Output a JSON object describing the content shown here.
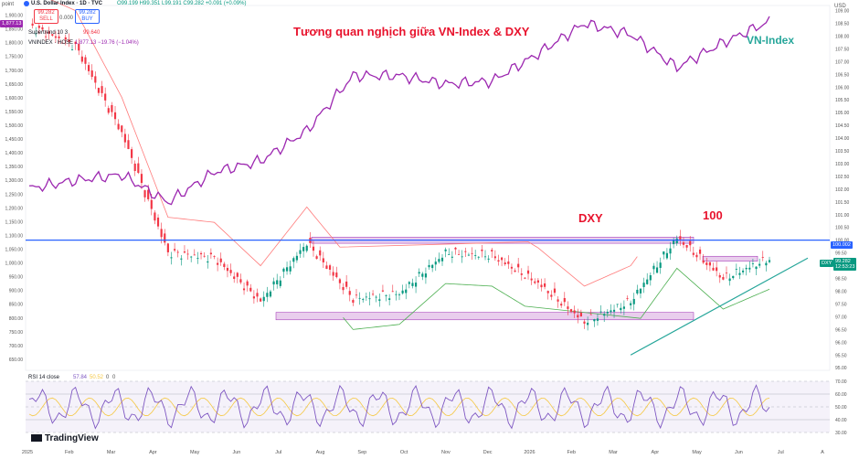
{
  "header": {
    "pane_label": "point",
    "symbol_line": "U.S. Dollar Index · 1D · TVC",
    "ohlc": "O99.199 H99.351 L99.191 C99.282 +0.091 (+0.09%)",
    "sell_price": "99.282",
    "sell_label": "SELL",
    "spread": "0.000",
    "buy_price": "99.282",
    "buy_label": "BUY",
    "supertrend": "Supertrend 10 3",
    "supertrend_value": "99.640",
    "vnindex_line": "VNINDEX · HOSE",
    "vnindex_value": "1,877.13 −19.76 (−1.04%)",
    "vnindex_badge": "1,877.13"
  },
  "annotations": {
    "title": "Tương quan nghịch giữa VN-Index  & DXY",
    "dxy_label": "DXY",
    "hundred_label": "100",
    "vnindex_label": "VN-Index"
  },
  "price_tags": {
    "hline": "100.002",
    "dxy_name": "DXY",
    "dxy_price": "99.282",
    "dxy_countdown": "12:53:23",
    "right_pane_label": "USD"
  },
  "rsi": {
    "label": "RSI 14 close",
    "value1": "57.84",
    "value2": "50.52",
    "value3": "0",
    "value4": "0"
  },
  "branding": "TradingView",
  "colors": {
    "up_candle": "#089981",
    "down_candle": "#f23645",
    "vnindex": "#9c27b0",
    "supertrend_up": "#4caf50",
    "supertrend_down": "#ff7b7b",
    "hline": "#2962ff",
    "zone": "#ce93d8",
    "trendline": "#26a69a",
    "title": "#e8132d",
    "rsi_line": "#7e57c2",
    "rsi_ma": "#f5c842"
  },
  "chart_data": [
    {
      "type": "candlestick",
      "name": "DXY",
      "x_axis_labels": [
        "2025",
        "Feb",
        "Mar",
        "Apr",
        "May",
        "Jun",
        "Jul",
        "Aug",
        "Sep",
        "Oct",
        "Nov",
        "Dec",
        "2026",
        "Feb",
        "Mar",
        "Apr",
        "May",
        "Jun",
        "Jul",
        "A"
      ],
      "right_axis_ticks": [
        109.0,
        108.5,
        108.0,
        107.5,
        107.0,
        106.5,
        106.0,
        105.5,
        105.0,
        104.5,
        104.0,
        103.5,
        103.0,
        102.5,
        102.0,
        101.5,
        101.0,
        100.5,
        100.0,
        99.5,
        99.0,
        98.5,
        98.0,
        97.5,
        97.0,
        96.5,
        96.0,
        95.5,
        95.0
      ],
      "right_axis_label": "USD",
      "ylim": [
        94.9,
        109.2
      ],
      "monthly_closes": [
        {
          "month": "2025-01",
          "value": 108.4
        },
        {
          "month": "2025-02",
          "value": 107.6
        },
        {
          "month": "2025-03",
          "value": 104.2
        },
        {
          "month": "2025-04",
          "value": 99.5
        },
        {
          "month": "2025-05",
          "value": 99.3
        },
        {
          "month": "2025-06",
          "value": 97.6
        },
        {
          "month": "2025-07",
          "value": 99.9
        },
        {
          "month": "2025-08",
          "value": 97.7
        },
        {
          "month": "2025-09",
          "value": 97.9
        },
        {
          "month": "2025-10",
          "value": 99.5
        },
        {
          "month": "2025-11",
          "value": 99.4
        },
        {
          "month": "2025-12",
          "value": 98.3
        },
        {
          "month": "2026-01",
          "value": 96.8
        },
        {
          "month": "2026-02",
          "value": 97.6
        },
        {
          "month": "2026-03",
          "value": 100.1
        },
        {
          "month": "2026-04",
          "value": 98.5
        },
        {
          "month": "2026-05",
          "value": 99.28
        }
      ],
      "horizontal_line": 100.002,
      "resistance_zone": [
        99.95,
        100.05
      ],
      "support_zone": [
        96.95,
        97.1
      ],
      "resistance_zone_2": [
        99.25,
        99.3
      ],
      "trendline": [
        {
          "date": "2026-02",
          "value": 95.5
        },
        {
          "date": "2026-06",
          "value": 99.3
        }
      ]
    },
    {
      "type": "line",
      "name": "VNINDEX",
      "left_axis_ticks": [
        1900,
        1850,
        1800,
        1750,
        1700,
        1650,
        1600,
        1550,
        1500,
        1450,
        1400,
        1350,
        1300,
        1250,
        1200,
        1150,
        1100,
        1050,
        1000,
        950,
        900,
        850,
        800,
        750,
        700,
        650
      ],
      "ylim": [
        610,
        1935
      ],
      "monthly_values": [
        {
          "month": "2025-01",
          "value": 1270
        },
        {
          "month": "2025-02",
          "value": 1300
        },
        {
          "month": "2025-03",
          "value": 1320
        },
        {
          "month": "2025-04",
          "value": 1220
        },
        {
          "month": "2025-05",
          "value": 1330
        },
        {
          "month": "2025-06",
          "value": 1370
        },
        {
          "month": "2025-07",
          "value": 1480
        },
        {
          "month": "2025-08",
          "value": 1680
        },
        {
          "month": "2025-09",
          "value": 1680
        },
        {
          "month": "2025-10",
          "value": 1650
        },
        {
          "month": "2025-11",
          "value": 1660
        },
        {
          "month": "2025-12",
          "value": 1760
        },
        {
          "month": "2026-01",
          "value": 1870
        },
        {
          "month": "2026-02",
          "value": 1830
        },
        {
          "month": "2026-03",
          "value": 1710
        },
        {
          "month": "2026-04",
          "value": 1800
        },
        {
          "month": "2026-05",
          "value": 1877.13
        }
      ]
    },
    {
      "type": "line",
      "name": "RSI 14 close",
      "yticks": [
        70,
        60,
        50,
        40,
        30
      ],
      "ylim": [
        25,
        75
      ],
      "bands": [
        30,
        70
      ],
      "last_value": 57.84,
      "ma_value": 50.52
    }
  ]
}
